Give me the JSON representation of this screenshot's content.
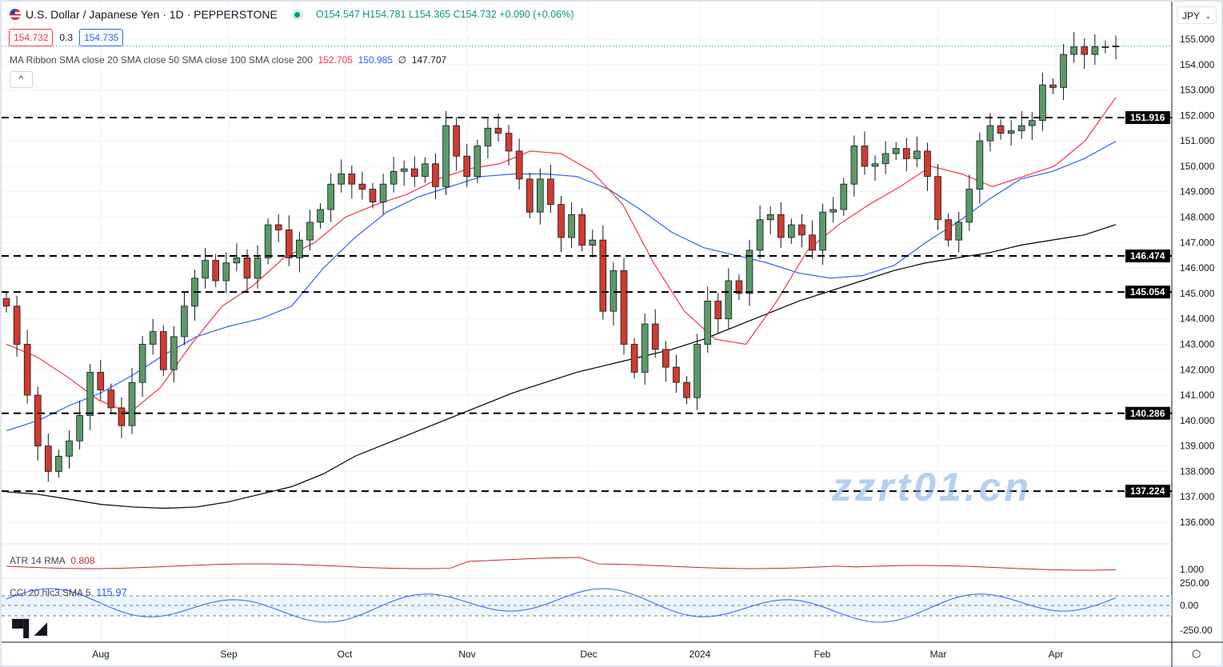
{
  "header": {
    "symbol_title": "U.S. Dollar / Japanese Yen · 1D · PEPPERSTONE",
    "ohlc": "O154.547 H154.781 L154.365 C154.732 +0.090 (+0.06%)",
    "flag_icon": "us-flag-icon",
    "market_status_color": "#089981"
  },
  "quotes": {
    "sell": "154.732",
    "spread": "0.3",
    "buy": "154.735"
  },
  "ma_ribbon": {
    "label": "MA Ribbon SMA close 20 SMA close 50 SMA close 100 SMA close 200",
    "v20": "152.705",
    "v50": "150.985",
    "v100": "∅",
    "v200": "147.707",
    "colors": {
      "sma20": "#f23645",
      "sma50": "#2962ff",
      "sma200": "#000000"
    }
  },
  "collapse_label": "^",
  "currency_select": "JPY",
  "price_axis": {
    "ticks": [
      "155.000",
      "154.000",
      "153.000",
      "152.000",
      "151.000",
      "150.000",
      "149.000",
      "148.000",
      "147.000",
      "146.000",
      "145.000",
      "144.000",
      "143.000",
      "142.000",
      "141.000",
      "140.000",
      "139.000",
      "138.000",
      "137.000",
      "136.000"
    ]
  },
  "levels": [
    {
      "value": "151.916"
    },
    {
      "value": "146.474"
    },
    {
      "value": "145.054"
    },
    {
      "value": "140.286"
    },
    {
      "value": "137.224"
    }
  ],
  "atr": {
    "label": "ATR 14 RMA",
    "value": "0.808",
    "axis": "1.000"
  },
  "cci": {
    "label": "CCI 20 hlc3 SMA 5",
    "value": "115.97",
    "axis": [
      "250.00",
      "0.00",
      "-250.00"
    ]
  },
  "time_axis": [
    "Aug",
    "Sep",
    "Oct",
    "Nov",
    "Dec",
    "2024",
    "Feb",
    "Mar",
    "Apr"
  ],
  "closes": [
    144.5,
    143,
    141,
    139,
    138,
    138.6,
    139.2,
    140.2,
    141.9,
    141.2,
    140.5,
    139.8,
    141.5,
    143,
    143.5,
    142,
    143.3,
    144.5,
    145.6,
    146.3,
    145.5,
    146.2,
    146.4,
    145.6,
    146.4,
    147.7,
    147.5,
    146.4,
    147.1,
    147.8,
    148.3,
    149.3,
    149.7,
    149.3,
    149.1,
    148.6,
    149.3,
    149.8,
    149.9,
    149.6,
    150.1,
    149.2,
    151.6,
    150.4,
    149.6,
    150.8,
    151.5,
    151.3,
    150.6,
    149.5,
    148.2,
    149.5,
    148.5,
    147.2,
    148.1,
    146.9,
    147.1,
    144.3,
    145.9,
    143,
    141.9,
    143.8,
    142.8,
    142.1,
    141.5,
    140.9,
    143,
    144.7,
    144,
    145.5,
    145,
    146.7,
    147.9,
    148.1,
    147.2,
    147.7,
    147.3,
    146.7,
    148.2,
    148.3,
    149.3,
    150.8,
    150,
    150.1,
    150.5,
    150.7,
    150.3,
    150.6,
    149.6,
    147.9,
    147.1,
    147.8,
    149.1,
    151,
    151.6,
    151.3,
    151.4,
    151.6,
    151.8,
    153.2,
    153.1,
    154.4,
    154.7,
    154.4,
    154.7,
    154.7,
    154.732
  ],
  "sma20": [
    143,
    142.5,
    141.7,
    140.8,
    140.3,
    141.3,
    143,
    144.5,
    145.3,
    146.4,
    147,
    148,
    148.5,
    148.9,
    149.5,
    149.9,
    150.1,
    150.6,
    150.5,
    149.8,
    148.5,
    146.2,
    144.3,
    143.2,
    143,
    144.7,
    146.7,
    147.7,
    148.5,
    149.2,
    150,
    149.7,
    149.2,
    149.6,
    150,
    151,
    152.705
  ],
  "sma50": [
    139.6,
    140,
    140.6,
    141.1,
    141.8,
    142.6,
    143.3,
    143.7,
    144,
    144.5,
    146,
    147.2,
    148.2,
    148.8,
    149.2,
    149.6,
    149.7,
    149.7,
    149.6,
    149.1,
    148.3,
    147.4,
    146.8,
    146.5,
    146.2,
    145.8,
    145.6,
    145.7,
    146.1,
    147,
    147.8,
    148.7,
    149.5,
    149.8,
    150.3,
    150.985
  ],
  "sma200": [
    137.2,
    137.1,
    136.9,
    136.7,
    136.6,
    136.55,
    136.6,
    136.8,
    137.1,
    137.4,
    137.9,
    138.6,
    139.1,
    139.6,
    140.1,
    140.6,
    141.1,
    141.5,
    141.9,
    142.2,
    142.5,
    142.8,
    143.2,
    143.7,
    144.2,
    144.7,
    145.1,
    145.5,
    145.9,
    146.2,
    146.4,
    146.6,
    146.9,
    147.1,
    147.3,
    147.707
  ],
  "watermark": "zzrt01.cn"
}
